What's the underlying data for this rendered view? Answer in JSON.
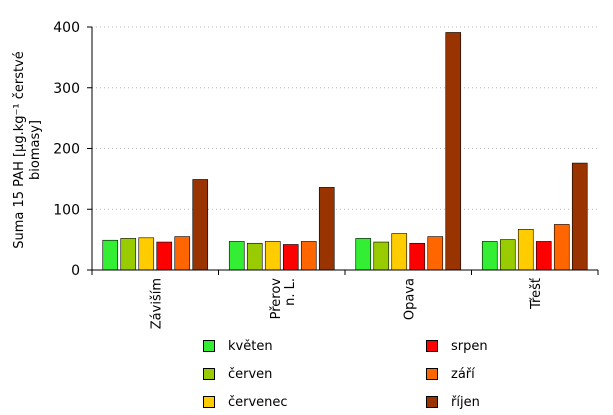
{
  "chart_data": {
    "type": "bar",
    "categories": [
      "Záviším",
      "Přerov n. L.",
      "Opava",
      "Třešť"
    ],
    "series": [
      {
        "name": "květen",
        "color": "#33ee33",
        "values": [
          49,
          47,
          52,
          47
        ]
      },
      {
        "name": "červen",
        "color": "#99cc00",
        "values": [
          52,
          44,
          46,
          50
        ]
      },
      {
        "name": "červenec",
        "color": "#ffcc00",
        "values": [
          53,
          47,
          60,
          67
        ]
      },
      {
        "name": "srpen",
        "color": "#ff0000",
        "values": [
          46,
          42,
          44,
          47
        ]
      },
      {
        "name": "září",
        "color": "#ff6600",
        "values": [
          55,
          47,
          55,
          75
        ]
      },
      {
        "name": "říjen",
        "color": "#993300",
        "values": [
          149,
          136,
          391,
          176
        ]
      }
    ],
    "ylabel": "Suma 15 PAH [µg.kg⁻¹ čerstvé biomasy]",
    "ylim": [
      0,
      400
    ],
    "yticks": [
      0,
      100,
      200,
      300,
      400
    ],
    "grid": true,
    "legend_position": "bottom"
  }
}
